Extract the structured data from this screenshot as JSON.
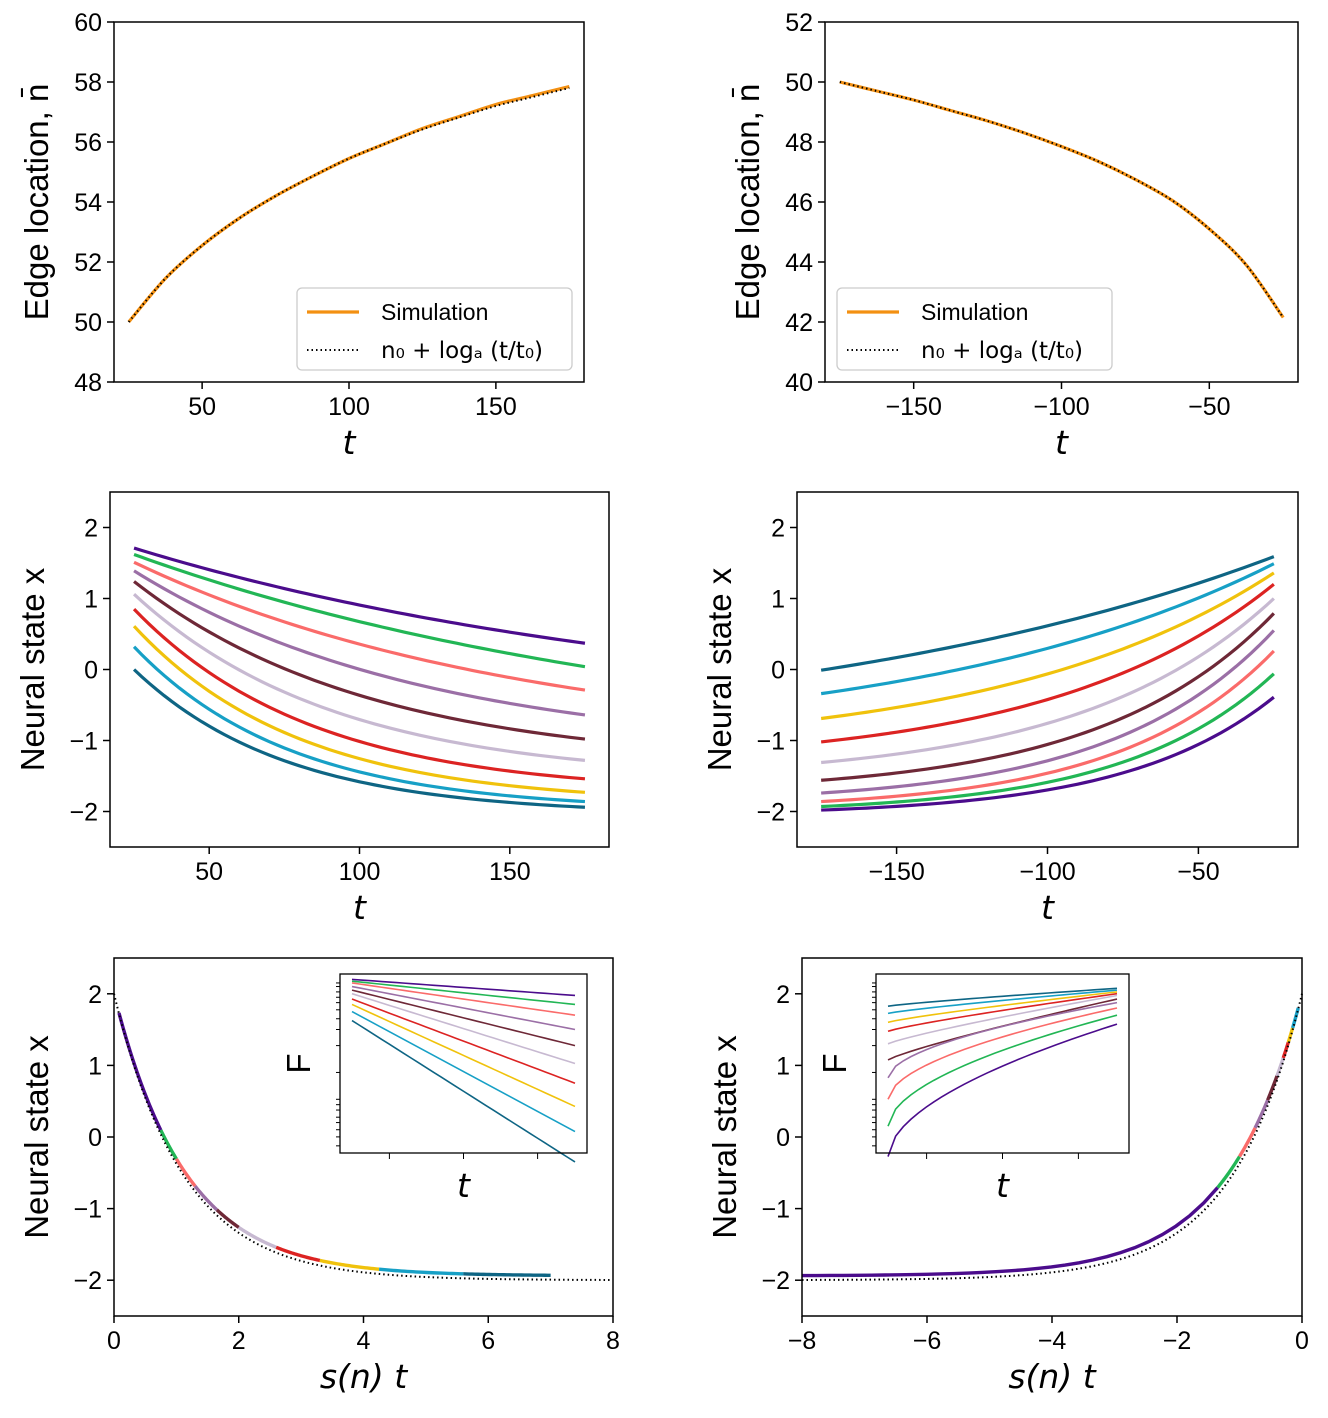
{
  "chart_data": [
    {
      "id": "p1",
      "type": "line",
      "xlabel": "t",
      "ylabel": "Edge location, n̄",
      "xlim": [
        20,
        180
      ],
      "ylim": [
        48,
        60
      ],
      "xticks": [
        50,
        100,
        150
      ],
      "yticks": [
        48,
        50,
        52,
        54,
        56,
        58,
        60
      ],
      "legend": {
        "position": "bottom-right",
        "entries": [
          {
            "label": "Simulation",
            "color": "#f39012",
            "style": "solid"
          },
          {
            "label": "n₀ + logₐ (t/t₀)",
            "color": "#000000",
            "style": "dotted"
          }
        ]
      },
      "series": [
        {
          "name": "Simulation",
          "color": "#f39012",
          "x": [
            25,
            37.5,
            50,
            62.5,
            75,
            87.5,
            100,
            112.5,
            125,
            137.5,
            150,
            162.5,
            175
          ],
          "y": [
            50.0,
            51.45,
            52.55,
            53.45,
            54.2,
            54.85,
            55.45,
            55.95,
            56.45,
            56.85,
            57.25,
            57.55,
            57.85
          ]
        },
        {
          "name": "n₀ + logₐ (t/t₀)",
          "color": "#000000",
          "dotted": true,
          "x": [
            25,
            37.5,
            50,
            62.5,
            75,
            87.5,
            100,
            112.5,
            125,
            137.5,
            150,
            162.5,
            175
          ],
          "y": [
            50.0,
            51.45,
            52.55,
            53.45,
            54.2,
            54.85,
            55.45,
            55.95,
            56.42,
            56.82,
            57.2,
            57.5,
            57.8
          ]
        }
      ]
    },
    {
      "id": "p2",
      "type": "line",
      "xlabel": "t",
      "ylabel": "Edge location, n̄",
      "xlim": [
        -180,
        -20
      ],
      "ylim": [
        40,
        52
      ],
      "xticks": [
        -150,
        -100,
        -50
      ],
      "xtick_labels": [
        "−150",
        "−100",
        "−50"
      ],
      "yticks": [
        40,
        42,
        44,
        46,
        48,
        50,
        52
      ],
      "legend": {
        "position": "bottom-left",
        "entries": [
          {
            "label": "Simulation",
            "color": "#f39012",
            "style": "solid"
          },
          {
            "label": "n₀ + logₐ (t/t₀)",
            "color": "#000000",
            "style": "dotted"
          }
        ]
      },
      "series": [
        {
          "name": "Simulation",
          "color": "#f39012",
          "x": [
            -175,
            -162.5,
            -150,
            -137.5,
            -125,
            -112.5,
            -100,
            -87.5,
            -75,
            -62.5,
            -50,
            -37.5,
            -25
          ],
          "y": [
            50.0,
            49.7,
            49.4,
            49.05,
            48.7,
            48.3,
            47.85,
            47.35,
            46.75,
            46.05,
            45.1,
            43.9,
            42.15
          ]
        },
        {
          "name": "n₀ + logₐ (t/t₀)",
          "color": "#000000",
          "dotted": true,
          "x": [
            -175,
            -162.5,
            -150,
            -137.5,
            -125,
            -112.5,
            -100,
            -87.5,
            -75,
            -62.5,
            -50,
            -37.5,
            -25
          ],
          "y": [
            50.0,
            49.7,
            49.4,
            49.05,
            48.7,
            48.3,
            47.85,
            47.35,
            46.75,
            46.05,
            45.1,
            43.9,
            42.15
          ]
        }
      ]
    },
    {
      "id": "p3",
      "type": "line",
      "xlabel": "t",
      "ylabel": "Neural state x",
      "xlim": [
        17,
        183
      ],
      "ylim": [
        -2.5,
        2.5
      ],
      "xticks": [
        50,
        100,
        150
      ],
      "yticks": [
        -2,
        -1,
        0,
        1,
        2
      ],
      "ytick_labels": [
        "−2",
        "−1",
        "0",
        "1",
        "2"
      ],
      "x_range": [
        25,
        175
      ],
      "series": [
        {
          "name": "s1",
          "color": "#4b0c8c",
          "start": 1.71,
          "end": 0.37
        },
        {
          "name": "s2",
          "color": "#22b655",
          "start": 1.62,
          "end": 0.04
        },
        {
          "name": "s3",
          "color": "#fa6b6a",
          "start": 1.51,
          "end": -0.29
        },
        {
          "name": "s4",
          "color": "#9b6fa6",
          "start": 1.39,
          "end": -0.64
        },
        {
          "name": "s5",
          "color": "#6e2837",
          "start": 1.24,
          "end": -0.98
        },
        {
          "name": "s6",
          "color": "#c7b9d1",
          "start": 1.06,
          "end": -1.28
        },
        {
          "name": "s7",
          "color": "#dc2322",
          "start": 0.85,
          "end": -1.54
        },
        {
          "name": "s8",
          "color": "#f0c20c",
          "start": 0.61,
          "end": -1.73
        },
        {
          "name": "s9",
          "color": "#17a0c6",
          "start": 0.32,
          "end": -1.86
        },
        {
          "name": "s10",
          "color": "#0e6584",
          "start": 0.0,
          "end": -1.94
        }
      ]
    },
    {
      "id": "p4",
      "type": "line",
      "xlabel": "t",
      "ylabel": "Neural state x",
      "xlim": [
        -183,
        -17
      ],
      "ylim": [
        -2.5,
        2.5
      ],
      "xticks": [
        -150,
        -100,
        -50
      ],
      "xtick_labels": [
        "−150",
        "−100",
        "−50"
      ],
      "yticks": [
        -2,
        -1,
        0,
        1,
        2
      ],
      "ytick_labels": [
        "−2",
        "−1",
        "0",
        "1",
        "2"
      ],
      "x_range": [
        -175,
        -25
      ],
      "series": [
        {
          "name": "s1",
          "color": "#0e6584",
          "start": -0.01,
          "end": 1.59
        },
        {
          "name": "s2",
          "color": "#17a0c6",
          "start": -0.34,
          "end": 1.49
        },
        {
          "name": "s3",
          "color": "#f0c20c",
          "start": -0.69,
          "end": 1.36
        },
        {
          "name": "s4",
          "color": "#dc2322",
          "start": -1.02,
          "end": 1.2
        },
        {
          "name": "s5",
          "color": "#c7b9d1",
          "start": -1.31,
          "end": 1.0
        },
        {
          "name": "s6",
          "color": "#6e2837",
          "start": -1.56,
          "end": 0.79
        },
        {
          "name": "s7",
          "color": "#9b6fa6",
          "start": -1.74,
          "end": 0.55
        },
        {
          "name": "s8",
          "color": "#fa6b6a",
          "start": -1.86,
          "end": 0.26
        },
        {
          "name": "s9",
          "color": "#22b655",
          "start": -1.93,
          "end": -0.06
        },
        {
          "name": "s10",
          "color": "#4b0c8c",
          "start": -1.98,
          "end": -0.39
        }
      ]
    },
    {
      "id": "p5",
      "type": "line",
      "xlabel": "s(n) t",
      "ylabel": "Neural state x",
      "xlim": [
        0,
        8
      ],
      "ylim": [
        -2.5,
        2.5
      ],
      "xticks": [
        0,
        2,
        4,
        6,
        8
      ],
      "yticks": [
        -2,
        -1,
        0,
        1,
        2
      ],
      "ytick_labels": [
        "−2",
        "−1",
        "0",
        "1",
        "2"
      ],
      "collapse_segments": [
        {
          "color": "#4b0c8c",
          "x0": 0.08,
          "x1": 0.75
        },
        {
          "color": "#22b655",
          "x0": 0.75,
          "x1": 1.0
        },
        {
          "color": "#fa6b6a",
          "x0": 1.0,
          "x1": 1.3
        },
        {
          "color": "#9b6fa6",
          "x0": 1.3,
          "x1": 1.65
        },
        {
          "color": "#6e2837",
          "x0": 1.65,
          "x1": 2.0
        },
        {
          "color": "#c7b9d1",
          "x0": 2.0,
          "x1": 2.6
        },
        {
          "color": "#dc2322",
          "x0": 2.6,
          "x1": 3.3
        },
        {
          "color": "#f0c20c",
          "x0": 3.3,
          "x1": 4.25
        },
        {
          "color": "#17a0c6",
          "x0": 4.25,
          "x1": 5.6
        },
        {
          "color": "#0e6584",
          "x0": 5.6,
          "x1": 7.0
        }
      ],
      "theory_curve": {
        "color": "#000000",
        "dotted": true,
        "x": [
          0,
          8
        ],
        "formula": "4*exp(-0.9*x) - 2"
      },
      "inset": {
        "xlabel": "t",
        "ylabel": "F",
        "yscale": "log",
        "lines": [
          {
            "color": "#4b0c8c",
            "start": 0.97,
            "end": 0.88
          },
          {
            "color": "#22b655",
            "start": 0.96,
            "end": 0.83
          },
          {
            "color": "#fa6b6a",
            "start": 0.95,
            "end": 0.77
          },
          {
            "color": "#9b6fa6",
            "start": 0.93,
            "end": 0.69
          },
          {
            "color": "#6e2837",
            "start": 0.91,
            "end": 0.6
          },
          {
            "color": "#c7b9d1",
            "start": 0.89,
            "end": 0.5
          },
          {
            "color": "#dc2322",
            "start": 0.86,
            "end": 0.39
          },
          {
            "color": "#f0c20c",
            "start": 0.83,
            "end": 0.26
          },
          {
            "color": "#17a0c6",
            "start": 0.79,
            "end": 0.12
          },
          {
            "color": "#0e6584",
            "start": 0.74,
            "end": -0.05
          }
        ]
      }
    },
    {
      "id": "p6",
      "type": "line",
      "xlabel": "s(n) t",
      "ylabel": "Neural state x",
      "xlim": [
        -8,
        0
      ],
      "ylim": [
        -2.5,
        2.5
      ],
      "xticks": [
        -8,
        -6,
        -4,
        -2,
        0
      ],
      "xtick_labels": [
        "−8",
        "−6",
        "−4",
        "−2",
        "0"
      ],
      "yticks": [
        -2,
        -1,
        0,
        1,
        2
      ],
      "ytick_labels": [
        "−2",
        "−1",
        "0",
        "1",
        "2"
      ],
      "collapse_segments": [
        {
          "color": "#4b0c8c",
          "x0": -8.0,
          "x1": -1.35
        },
        {
          "color": "#22b655",
          "x0": -1.35,
          "x1": -1.0
        },
        {
          "color": "#fa6b6a",
          "x0": -1.0,
          "x1": -0.75
        },
        {
          "color": "#9b6fa6",
          "x0": -0.75,
          "x1": -0.55
        },
        {
          "color": "#6e2837",
          "x0": -0.55,
          "x1": -0.4
        },
        {
          "color": "#c7b9d1",
          "x0": -0.4,
          "x1": -0.3
        },
        {
          "color": "#dc2322",
          "x0": -0.3,
          "x1": -0.22
        },
        {
          "color": "#f0c20c",
          "x0": -0.22,
          "x1": -0.15
        },
        {
          "color": "#17a0c6",
          "x0": -0.15,
          "x1": -0.06
        }
      ],
      "theory_curve": {
        "color": "#000000",
        "dotted": true,
        "x": [
          -8,
          0
        ],
        "formula": "4*exp(0.9*x) - 2"
      },
      "inset": {
        "xlabel": "t",
        "ylabel": "F",
        "yscale": "log",
        "lines": [
          {
            "color": "#0e6584",
            "start": 0.82,
            "end": 0.92
          },
          {
            "color": "#17a0c6",
            "start": 0.78,
            "end": 0.91
          },
          {
            "color": "#f0c20c",
            "start": 0.73,
            "end": 0.9
          },
          {
            "color": "#dc2322",
            "start": 0.68,
            "end": 0.89
          },
          {
            "color": "#c7b9d1",
            "start": 0.61,
            "end": 0.88
          },
          {
            "color": "#6e2837",
            "start": 0.52,
            "end": 0.86
          },
          {
            "color": "#9b6fa6",
            "start": 0.42,
            "end": 0.84
          },
          {
            "color": "#fa6b6a",
            "start": 0.3,
            "end": 0.81
          },
          {
            "color": "#22b655",
            "start": 0.15,
            "end": 0.77
          },
          {
            "color": "#4b0c8c",
            "start": -0.02,
            "end": 0.72
          }
        ]
      }
    }
  ]
}
